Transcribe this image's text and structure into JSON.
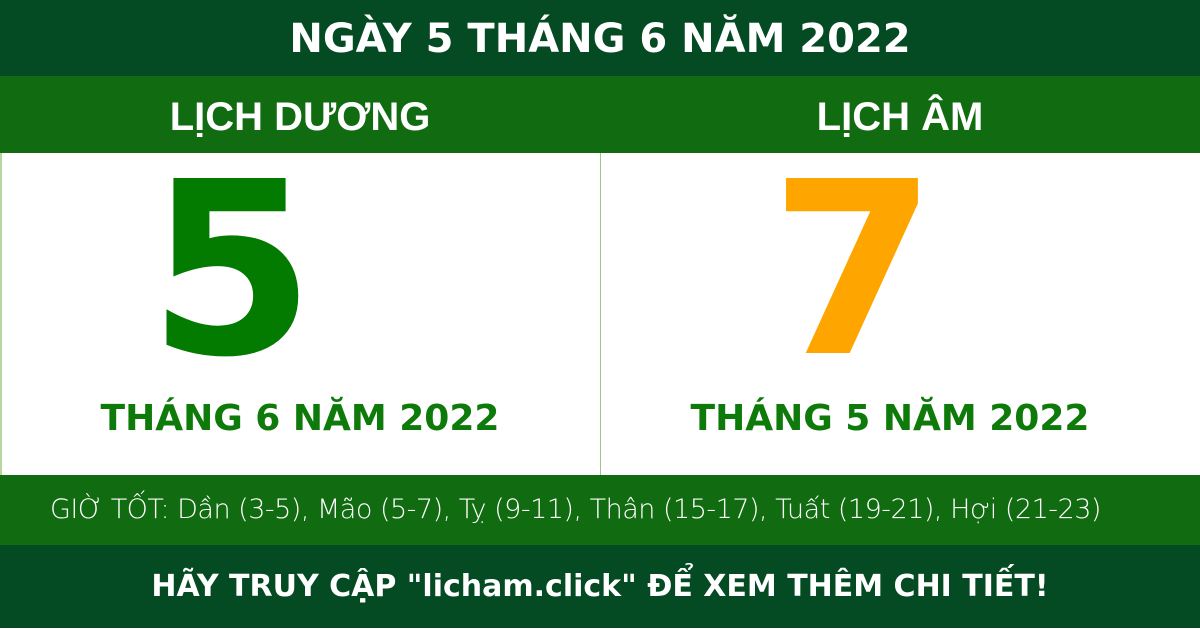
{
  "header": {
    "title": "NGÀY 5 THÁNG 6 NĂM 2022"
  },
  "solar": {
    "label": "LỊCH DƯƠNG",
    "day": "5",
    "month_year": "THÁNG 6 NĂM 2022",
    "color": "#037a00"
  },
  "lunar": {
    "label": "LỊCH ÂM",
    "day": "7",
    "month_year": "THÁNG 5 NĂM 2022",
    "color": "#ffa500"
  },
  "good_hours": "GIỜ TỐT: Dần (3-5), Mão (5-7), Tỵ (9-11), Thân (15-17), Tuất (19-21), Hợi (21-23)",
  "footer": "HÃY TRUY CẬP \"licham.click\" ĐỂ XEM THÊM CHI TIẾT!"
}
